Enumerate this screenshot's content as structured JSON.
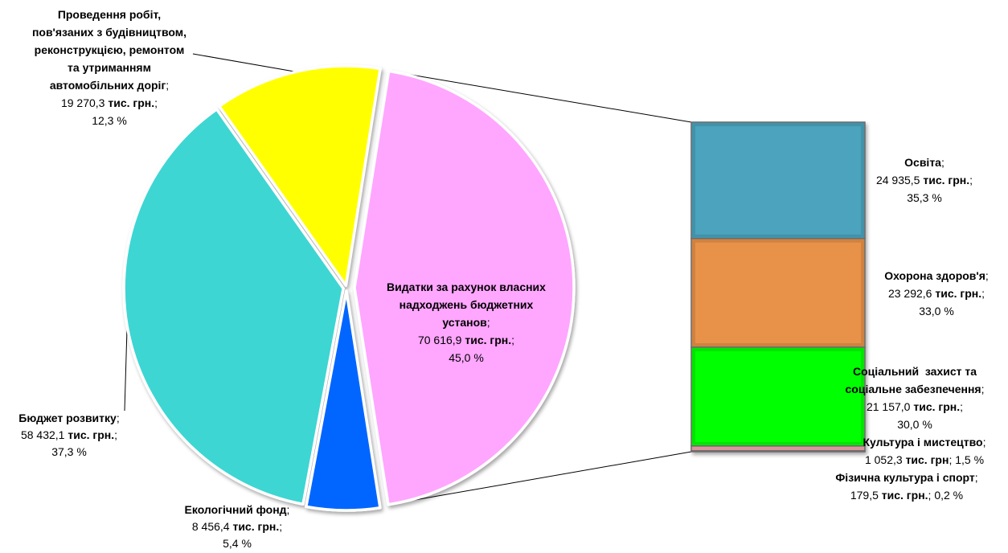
{
  "chart_data": {
    "type": "pie",
    "subtype": "bar-of-pie",
    "pie": {
      "slices": [
        {
          "name_lines": [
            "Видатки за рахунок власних",
            "надходжень бюджетних",
            "установ"
          ],
          "name_sep": ";",
          "value": 70616.9,
          "value_text": "70 616,9",
          "unit_text": "тис. грн.",
          "unit_sep": ";",
          "percent": 45.0,
          "percent_text": "45,0 %",
          "color": "#FFA6FF"
        },
        {
          "name_lines": [
            "Екологічний фонд"
          ],
          "name_sep": ";",
          "value": 8456.4,
          "value_text": "8 456,4",
          "unit_text": "тис. грн.",
          "unit_sep": ";",
          "percent": 5.4,
          "percent_text": "5,4 %",
          "color": "#0066FF"
        },
        {
          "name_lines": [
            "Бюджет розвитку"
          ],
          "name_sep": ";",
          "value": 58432.1,
          "value_text": "58 432,1",
          "unit_text": "тис. грн.",
          "unit_sep": ";",
          "percent": 37.3,
          "percent_text": "37,3 %",
          "color": "#3DD6D3"
        },
        {
          "name_lines": [
            "Проведення робіт,",
            "пов'язаних з будівництвом,",
            "реконструкцією, ремонтом",
            "та утриманням",
            "автомобільних доріг"
          ],
          "name_sep": ";",
          "value": 19270.3,
          "value_text": "19 270,3",
          "unit_text": "тис. грн.",
          "unit_sep": ";",
          "percent": 12.3,
          "percent_text": "12,3 %",
          "color": "#FFFF00"
        }
      ]
    },
    "bar": {
      "segments": [
        {
          "name_lines": [
            "Освіта"
          ],
          "name_sep": ";",
          "value": 24935.5,
          "value_text": "24 935,5",
          "unit_text": "тис. грн.",
          "unit_sep": ";",
          "percent": 35.3,
          "percent_text": "35,3 %",
          "color": "#4BA3BD"
        },
        {
          "name_lines": [
            "Охорона здоров'я"
          ],
          "name_sep": ";",
          "value": 23292.6,
          "value_text": "23 292,6",
          "unit_text": "тис. грн.",
          "unit_sep": ";",
          "percent": 33.0,
          "percent_text": "33,0 %",
          "color": "#E89149"
        },
        {
          "name_lines": [
            "Соціальний  захист та",
            "соціальне забезпечення"
          ],
          "name_sep": ";",
          "value": 21157.0,
          "value_text": "21 157,0",
          "unit_text": "тис. грн.",
          "unit_sep": ";",
          "percent": 30.0,
          "percent_text": "30,0 %",
          "color": "#00FF00"
        },
        {
          "name_lines": [
            "Культура і мистецтво"
          ],
          "name_sep": ";",
          "value": 1052.3,
          "value_text": "1 052,3",
          "unit_text": "тис. грн",
          "unit_sep": ";",
          "percent": 1.5,
          "percent_text": "1,5 %",
          "color": "#D9969B"
        },
        {
          "name_lines": [
            "Фізична культура і спорт"
          ],
          "name_sep": ";",
          "value": 179.5,
          "value_text": "179,5",
          "unit_text": "тис. грн.",
          "unit_sep": ";",
          "percent": 0.2,
          "percent_text": "0,2 %",
          "color": "#8F7AB8"
        }
      ]
    }
  }
}
